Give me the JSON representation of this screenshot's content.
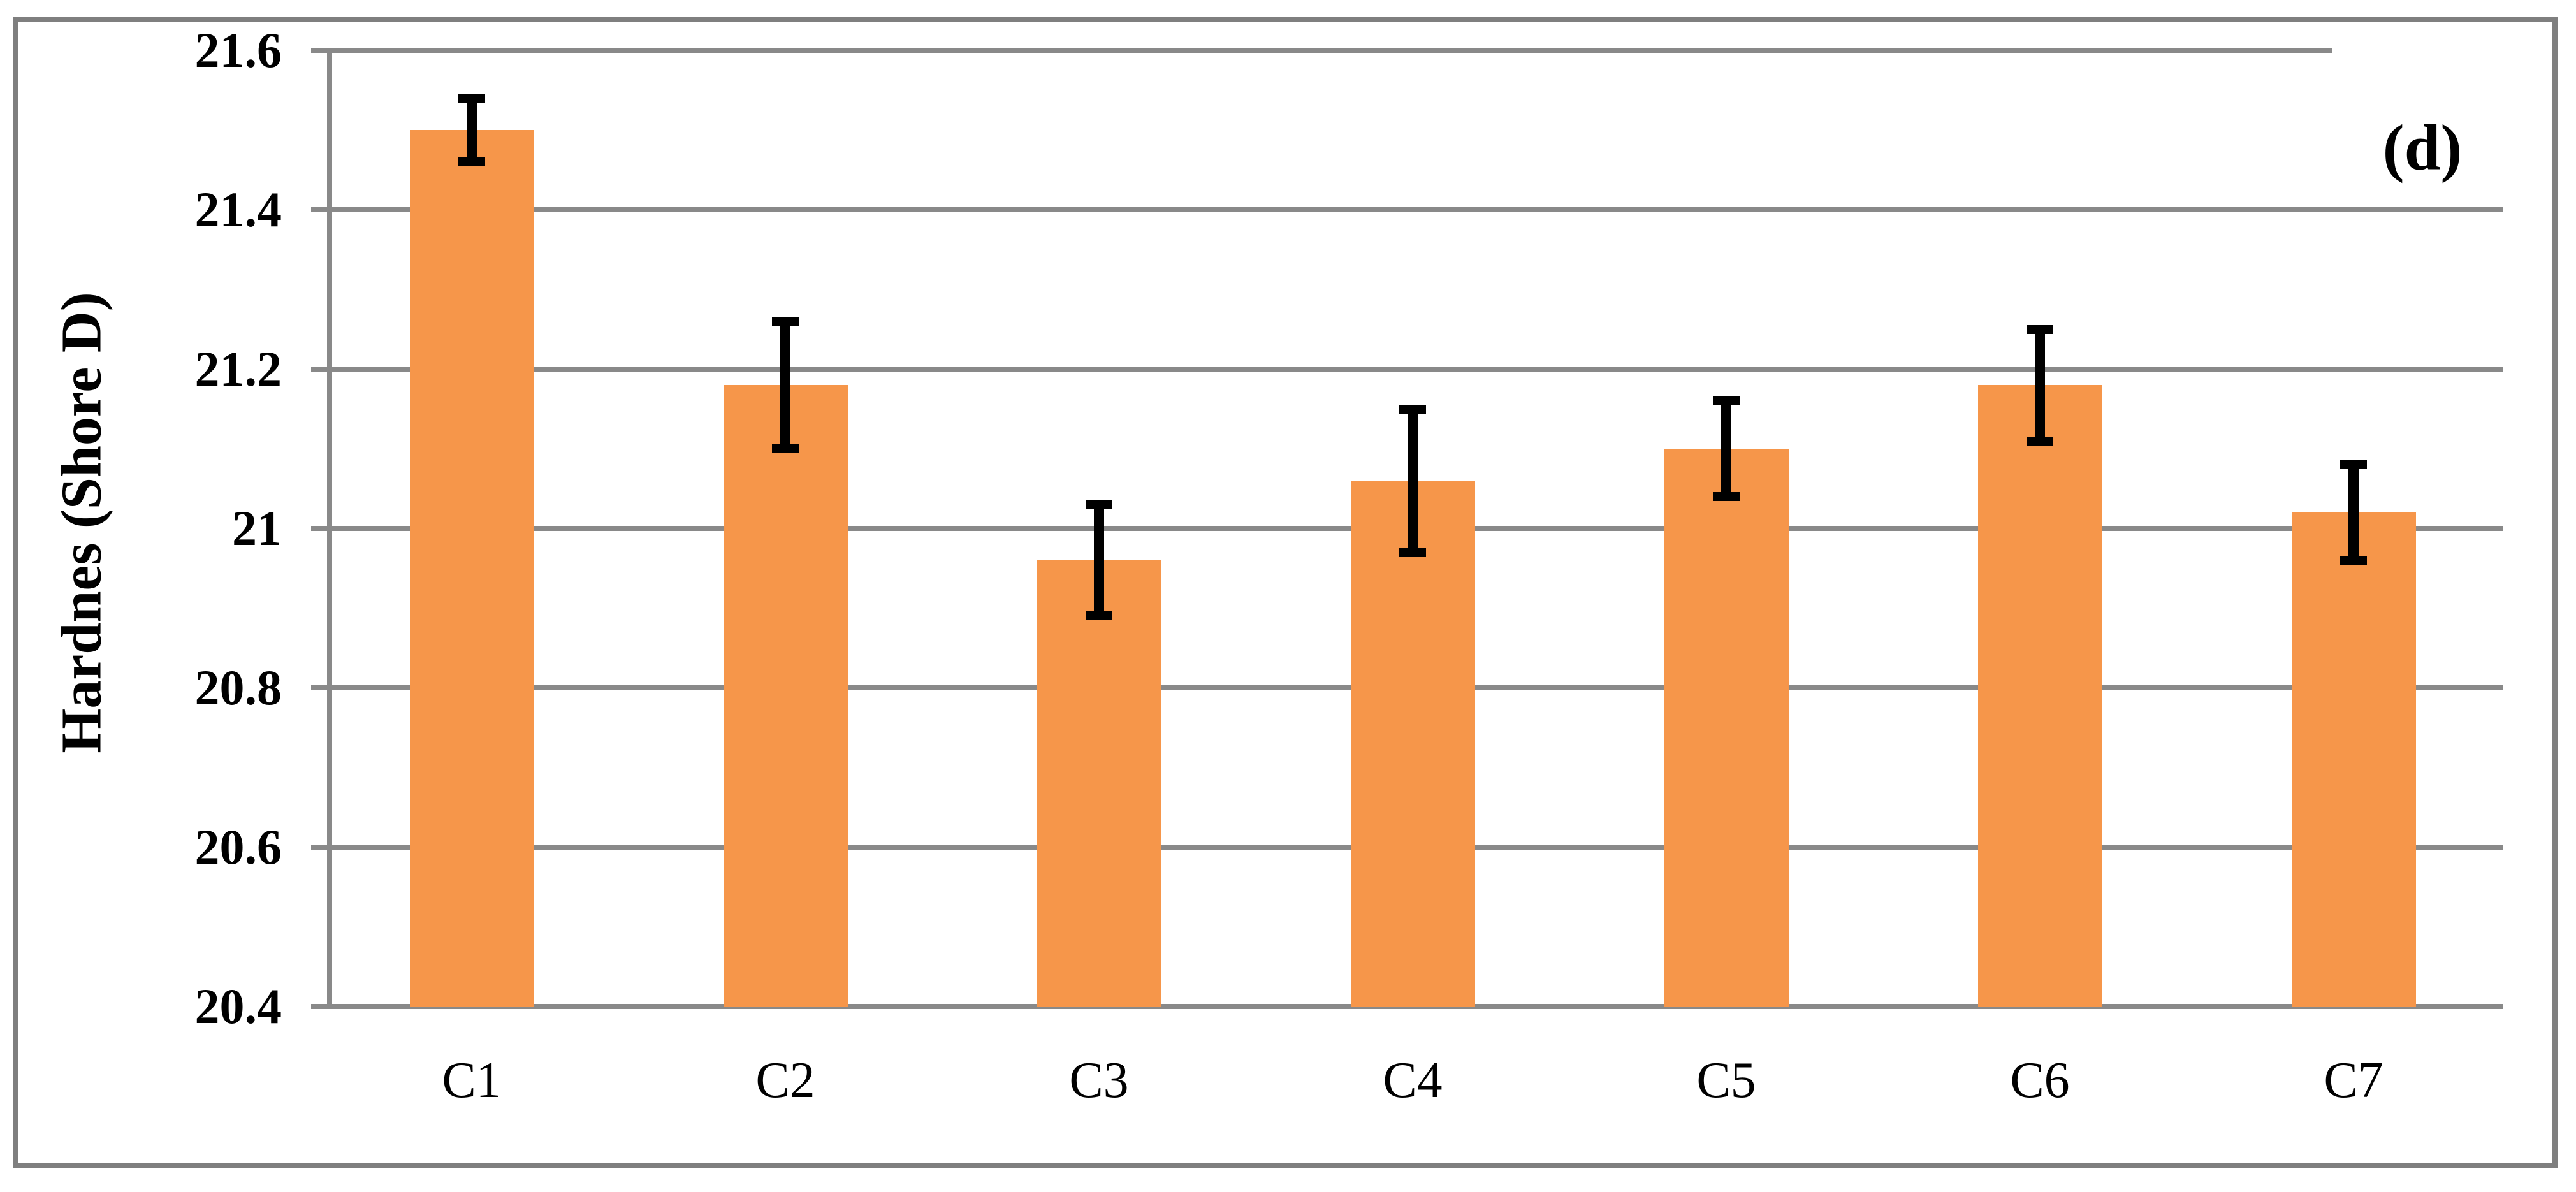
{
  "chart_data": {
    "type": "bar",
    "panel_label": "(d)",
    "ylabel": "Hardnes (Shore D)",
    "categories": [
      "C1",
      "C2",
      "C3",
      "C4",
      "C5",
      "C6",
      "C7"
    ],
    "series": [
      {
        "name": "Hardness",
        "values": [
          21.5,
          21.18,
          20.96,
          21.06,
          21.1,
          21.18,
          21.02
        ],
        "error_plus": [
          0.04,
          0.08,
          0.07,
          0.09,
          0.06,
          0.07,
          0.06
        ],
        "error_minus": [
          0.04,
          0.08,
          0.07,
          0.09,
          0.06,
          0.07,
          0.06
        ]
      }
    ],
    "ylim": [
      20.4,
      21.6
    ],
    "yticks": [
      "21.6",
      "21.4",
      "21.2",
      "21",
      "20.8",
      "20.6",
      "20.4"
    ],
    "ytick_values": [
      21.6,
      21.4,
      21.2,
      21.0,
      20.8,
      20.6,
      20.4
    ],
    "grid": "horizontal gridlines on",
    "legend": "none",
    "bar_color": "#F6964A",
    "grid_color": "#898989",
    "frame_color": "#7F7F7F",
    "error_bar_color": "#000000",
    "text_color": "#000000"
  }
}
